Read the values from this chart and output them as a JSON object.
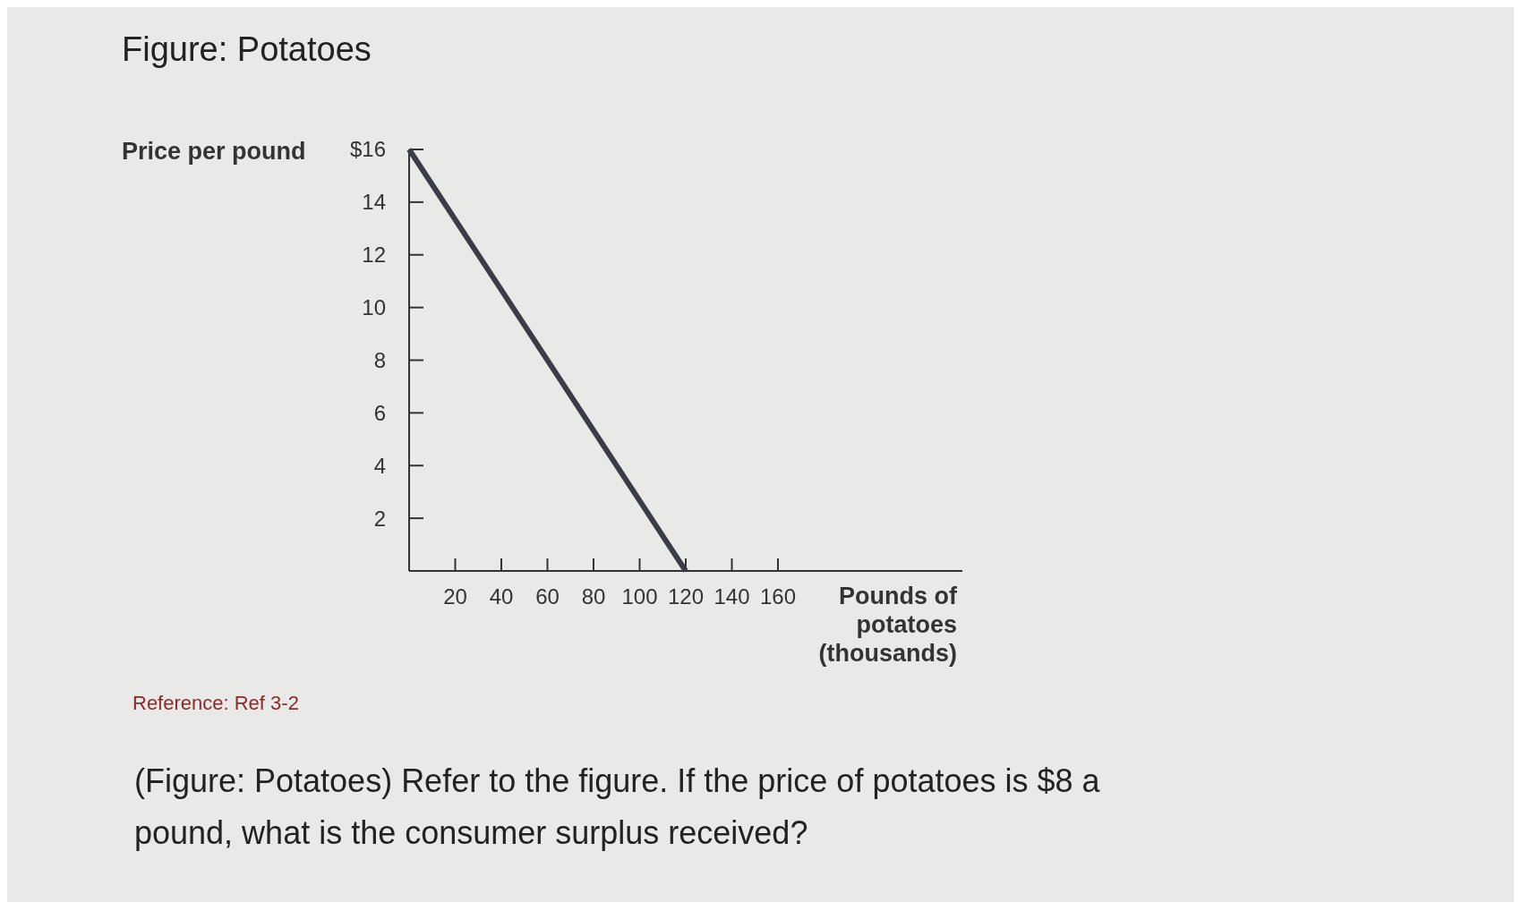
{
  "chart_data": {
    "type": "line",
    "title": "Figure: Potatoes",
    "ylabel": "Price per pound",
    "xlabel": "Pounds of potatoes (thousands)",
    "x": [
      0,
      120
    ],
    "series": [
      {
        "color": "#3a3d47",
        "values": [
          16,
          0
        ]
      }
    ],
    "xlim": [
      0,
      240
    ],
    "xticks": [
      20,
      40,
      60,
      80,
      100,
      120,
      140,
      160
    ],
    "ylim": [
      0,
      16
    ],
    "yticks": [
      2,
      4,
      6,
      8,
      10,
      12,
      14,
      {
        "value": 16,
        "label": "$16"
      }
    ],
    "grid": false,
    "line_style": "solid",
    "annotations": [
      "Reference: Ref 3-2",
      "(Figure: Potatoes) Refer to the figure. If the price of potatoes is $8 a pound, what is the consumer surplus received?"
    ]
  }
}
